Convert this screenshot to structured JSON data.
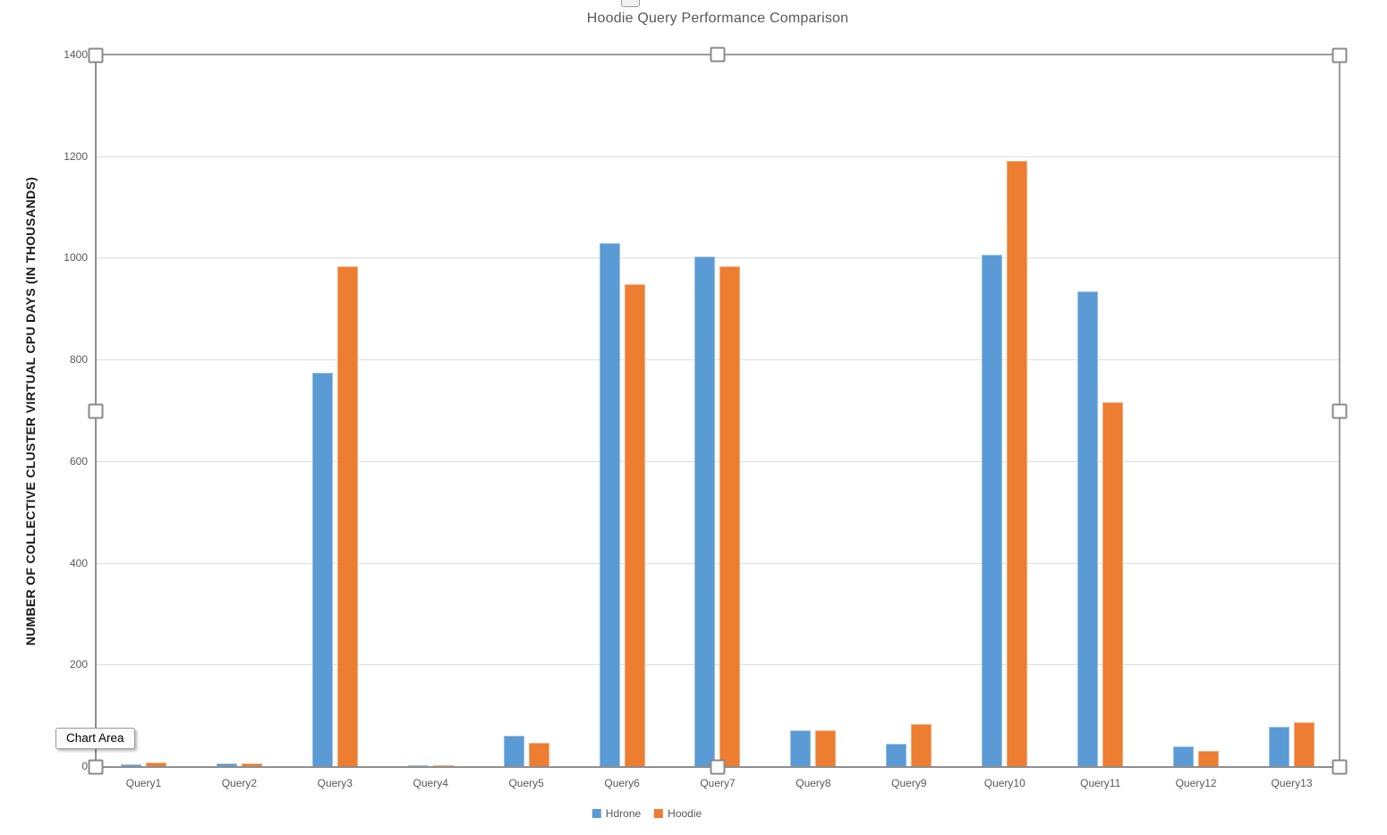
{
  "title": "Hoodie Query Performance Comparison",
  "tooltip": {
    "label": "Chart Area"
  },
  "y_axis": {
    "title": "NUMBER OF COLLECTIVE CLUSTER VIRTUAL CPU DAYS (IN THOUSANDS)"
  },
  "colors": {
    "hdrone": "#5B9BD5",
    "hoodie": "#ED7D31",
    "title_text": "#595959",
    "axis_text": "#595959",
    "gridline": "#dcdcdc"
  },
  "chart_data": {
    "type": "bar",
    "title": "Hoodie Query Performance Comparison",
    "ylabel": "NUMBER OF COLLECTIVE CLUSTER VIRTUAL CPU DAYS (IN THOUSANDS)",
    "xlabel": "",
    "ylim": [
      0,
      1400
    ],
    "ytick_interval": 200,
    "grid": true,
    "legend_position": "bottom",
    "categories": [
      "Query1",
      "Query2",
      "Query3",
      "Query4",
      "Query5",
      "Query6",
      "Query7",
      "Query8",
      "Query9",
      "Query10",
      "Query11",
      "Query12",
      "Query13"
    ],
    "series": [
      {
        "name": "Hdrone",
        "color": "#5B9BD5",
        "values": [
          5,
          7,
          775,
          4,
          62,
          1030,
          1005,
          72,
          46,
          1008,
          935,
          40,
          79
        ]
      },
      {
        "name": "Hoodie",
        "color": "#ED7D31",
        "values": [
          8,
          7,
          985,
          4,
          48,
          950,
          985,
          72,
          84,
          1193,
          718,
          32,
          88
        ]
      }
    ]
  }
}
